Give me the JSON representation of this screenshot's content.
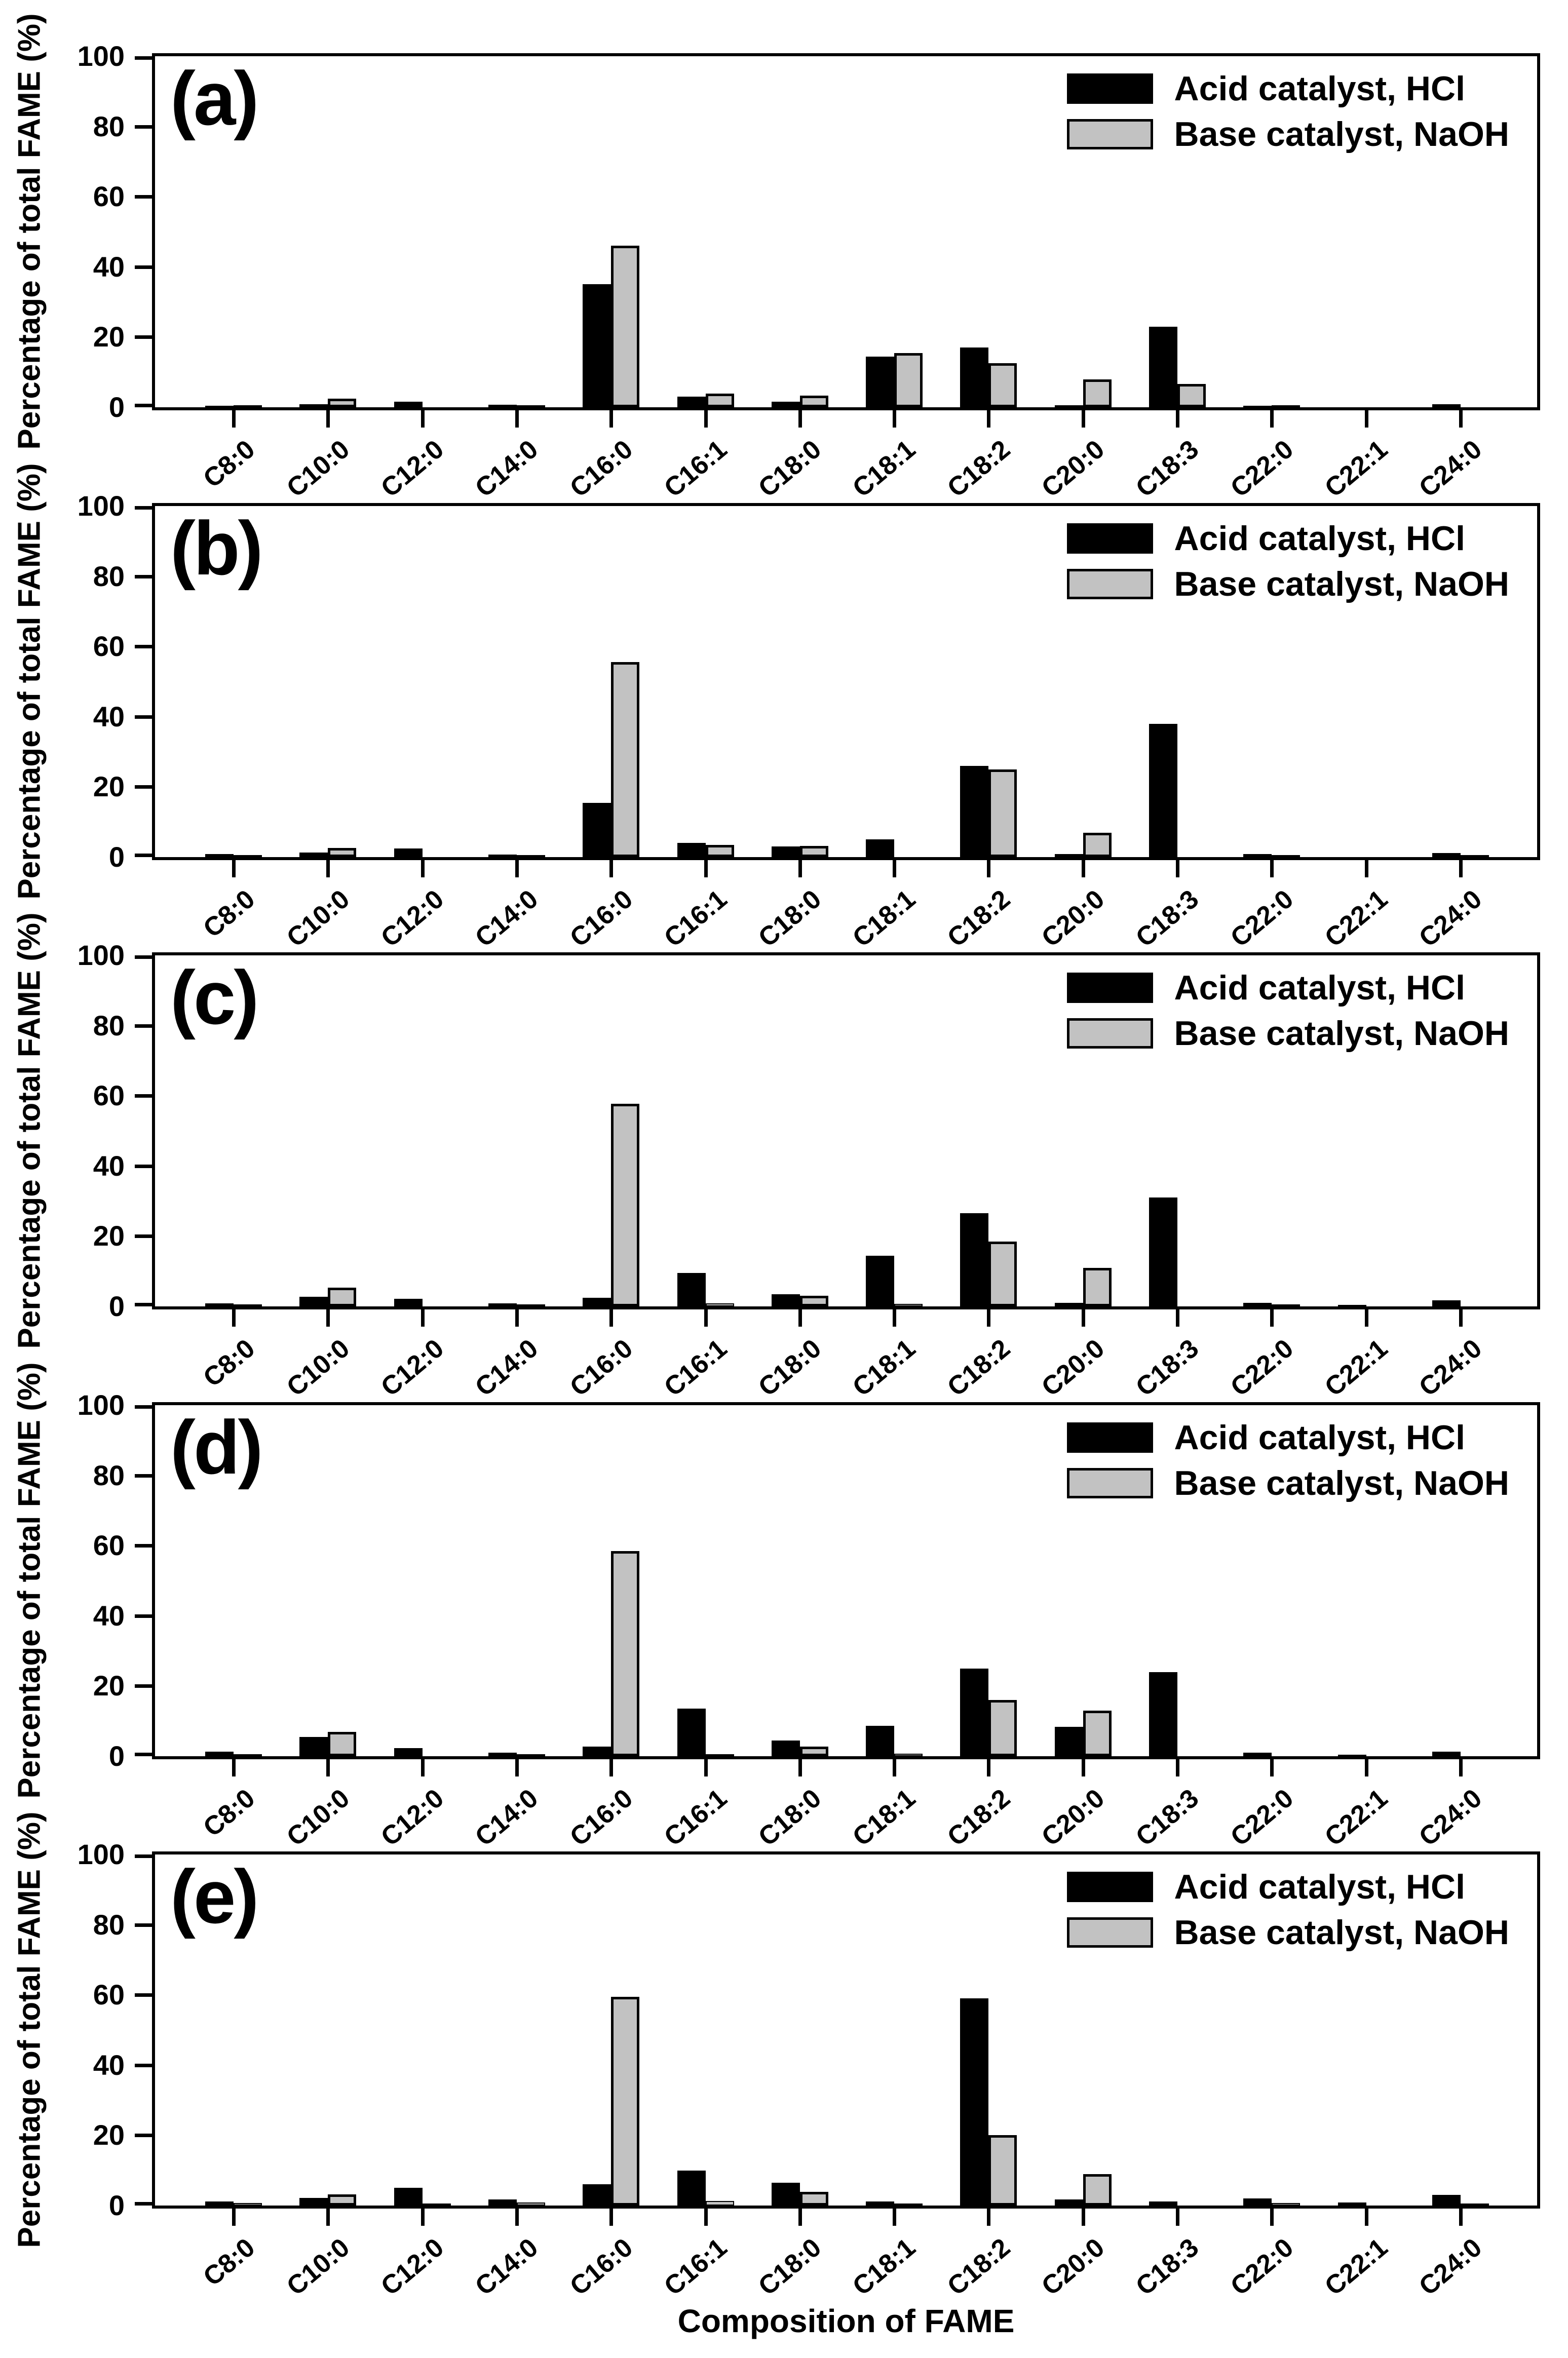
{
  "figure": {
    "y_axis_title": "Percentage of total FAME (%)",
    "x_axis_title": "Composition of FAME",
    "colors": {
      "acid": "#000000",
      "base": "#c2c2c2"
    }
  },
  "legend": {
    "acid": "Acid catalyst, HCl",
    "base": "Base catalyst, NaOH"
  },
  "chart_data": [
    {
      "type": "bar",
      "panel_label": "(a)",
      "ylabel": "Percentage of total FAME (%)",
      "xlabel": "",
      "ylim": [
        0,
        100
      ],
      "y_ticks": [
        0,
        20,
        40,
        60,
        80,
        100
      ],
      "grid": false,
      "legend_position": "top-right",
      "categories": [
        "C8:0",
        "C10:0",
        "C12:0",
        "C14:0",
        "C16:0",
        "C16:1",
        "C18:0",
        "C18:1",
        "C18:2",
        "C20:0",
        "C18:3",
        "C22:0",
        "C22:1",
        "C24:0"
      ],
      "series": [
        {
          "name": "Acid catalyst, HCl",
          "color": "#000000",
          "values": [
            0.5,
            0.9,
            1.6,
            0.7,
            35.0,
            3.0,
            1.6,
            14.5,
            17.0,
            0.6,
            23.0,
            0.5,
            0,
            0.8
          ]
        },
        {
          "name": "Base catalyst, NaOH",
          "color": "#c2c2c2",
          "values": [
            0.2,
            2.5,
            0,
            0.4,
            46.0,
            3.9,
            3.3,
            15.5,
            12.5,
            8.0,
            6.6,
            0.3,
            0,
            0
          ]
        }
      ]
    },
    {
      "type": "bar",
      "panel_label": "(b)",
      "ylabel": "Percentage of total FAME (%)",
      "xlabel": "",
      "ylim": [
        0,
        100
      ],
      "y_ticks": [
        0,
        20,
        40,
        60,
        80,
        100
      ],
      "grid": false,
      "legend_position": "top-right",
      "categories": [
        "C8:0",
        "C10:0",
        "C12:0",
        "C14:0",
        "C16:0",
        "C16:1",
        "C18:0",
        "C18:1",
        "C18:2",
        "C20:0",
        "C18:3",
        "C22:0",
        "C22:1",
        "C24:0"
      ],
      "series": [
        {
          "name": "Acid catalyst, HCl",
          "color": "#000000",
          "values": [
            0.8,
            1.3,
            2.4,
            0.7,
            15.5,
            4.1,
            3.0,
            5.0,
            26.0,
            0.8,
            38.0,
            0.8,
            0,
            1.2
          ]
        },
        {
          "name": "Base catalyst, NaOH",
          "color": "#c2c2c2",
          "values": [
            0.3,
            2.6,
            0,
            0.5,
            55.5,
            3.5,
            3.2,
            0,
            25.0,
            7.0,
            0,
            0.3,
            0,
            0.3
          ]
        }
      ]
    },
    {
      "type": "bar",
      "panel_label": "(c)",
      "ylabel": "Percentage of total FAME (%)",
      "xlabel": "",
      "ylim": [
        0,
        100
      ],
      "y_ticks": [
        0,
        20,
        40,
        60,
        80,
        100
      ],
      "grid": false,
      "legend_position": "top-right",
      "categories": [
        "C8:0",
        "C10:0",
        "C12:0",
        "C14:0",
        "C16:0",
        "C16:1",
        "C18:0",
        "C18:1",
        "C18:2",
        "C20:0",
        "C18:3",
        "C22:0",
        "C22:1",
        "C24:0"
      ],
      "series": [
        {
          "name": "Acid catalyst, HCl",
          "color": "#000000",
          "values": [
            0.8,
            2.8,
            2.2,
            0.8,
            2.5,
            9.5,
            3.5,
            14.5,
            26.5,
            1.0,
            31.0,
            1.0,
            0.5,
            1.8
          ]
        },
        {
          "name": "Base catalyst, NaOH",
          "color": "#c2c2c2",
          "values": [
            0.3,
            5.3,
            0,
            0.4,
            57.7,
            0.9,
            3.0,
            0.7,
            18.5,
            11.0,
            0,
            0.4,
            0,
            0
          ]
        }
      ]
    },
    {
      "type": "bar",
      "panel_label": "(d)",
      "ylabel": "Percentage of total FAME (%)",
      "xlabel": "",
      "ylim": [
        0,
        100
      ],
      "y_ticks": [
        0,
        20,
        40,
        60,
        80,
        100
      ],
      "grid": false,
      "legend_position": "top-right",
      "categories": [
        "C8:0",
        "C10:0",
        "C12:0",
        "C14:0",
        "C16:0",
        "C16:1",
        "C18:0",
        "C18:1",
        "C18:2",
        "C20:0",
        "C18:3",
        "C22:0",
        "C22:1",
        "C24:0"
      ],
      "series": [
        {
          "name": "Acid catalyst, HCl",
          "color": "#000000",
          "values": [
            1.3,
            5.5,
            2.3,
            1.0,
            2.8,
            13.5,
            4.5,
            8.7,
            25.0,
            8.3,
            24.0,
            1.0,
            0.5,
            1.3
          ]
        },
        {
          "name": "Base catalyst, NaOH",
          "color": "#c2c2c2",
          "values": [
            0.4,
            7.0,
            0,
            0.4,
            58.5,
            0.6,
            2.8,
            0.7,
            16.0,
            13.0,
            0,
            0,
            0,
            0
          ]
        }
      ]
    },
    {
      "type": "bar",
      "panel_label": "(e)",
      "ylabel": "Percentage of total FAME (%)",
      "xlabel": "Composition of FAME",
      "ylim": [
        0,
        100
      ],
      "y_ticks": [
        0,
        20,
        40,
        60,
        80,
        100
      ],
      "grid": false,
      "legend_position": "top-right",
      "categories": [
        "C8:0",
        "C10:0",
        "C12:0",
        "C14:0",
        "C16:0",
        "C16:1",
        "C18:0",
        "C18:1",
        "C18:2",
        "C20:0",
        "C18:3",
        "C22:0",
        "C22:1",
        "C24:0"
      ],
      "series": [
        {
          "name": "Acid catalyst, HCl",
          "color": "#000000",
          "values": [
            1.2,
            2.2,
            5.0,
            1.7,
            6.0,
            10.0,
            6.5,
            1.2,
            59.0,
            1.7,
            1.2,
            2.0,
            0.8,
            3.0
          ]
        },
        {
          "name": "Base catalyst, NaOH",
          "color": "#c2c2c2",
          "values": [
            0.7,
            3.2,
            0.4,
            0.8,
            59.5,
            1.3,
            3.9,
            0.3,
            20.0,
            9.0,
            0,
            0.7,
            0,
            0.3
          ]
        }
      ]
    }
  ]
}
